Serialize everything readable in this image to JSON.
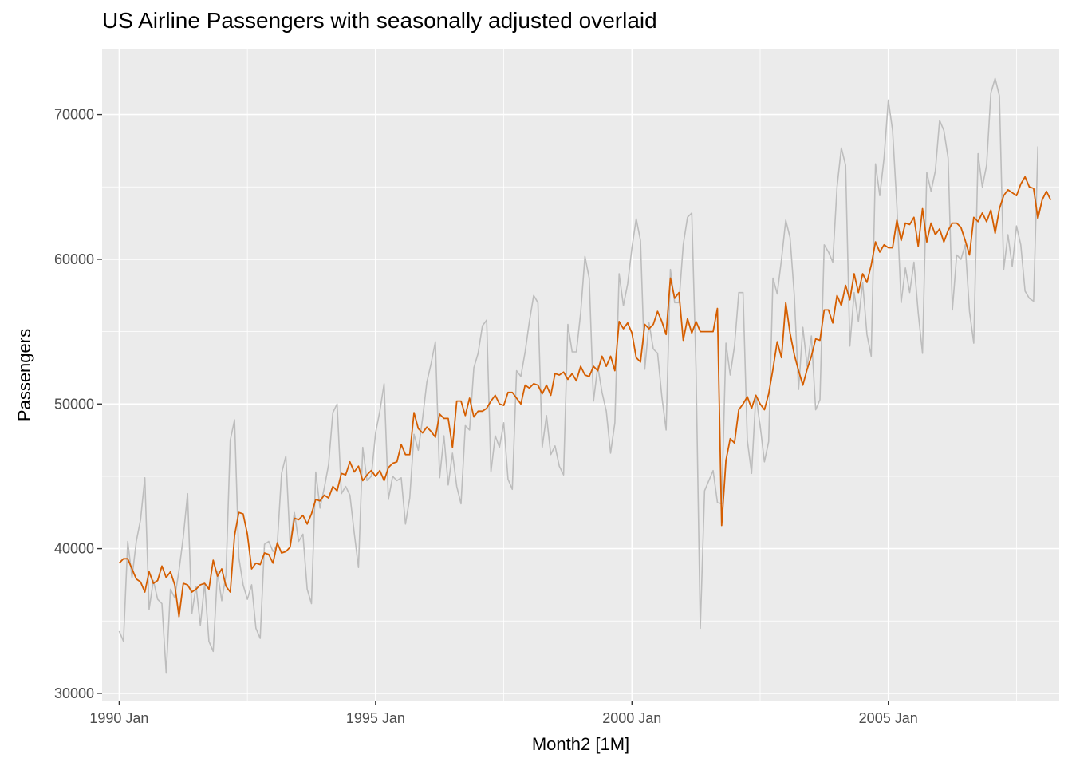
{
  "chart_data": {
    "type": "line",
    "title": "US Airline Passengers with seasonally adjusted overlaid",
    "xlabel": "Month2 [1M]",
    "ylabel": "Passengers",
    "x_range": [
      "1989-09",
      "2008-05"
    ],
    "ylim": [
      29500,
      74500
    ],
    "x_ticks": [
      {
        "date": "1990-01",
        "label": "1990 Jan"
      },
      {
        "date": "1995-01",
        "label": "1995 Jan"
      },
      {
        "date": "2000-01",
        "label": "2000 Jan"
      },
      {
        "date": "2005-01",
        "label": "2005 Jan"
      }
    ],
    "y_ticks": [
      30000,
      40000,
      50000,
      60000,
      70000
    ],
    "grid": true,
    "legend": "none",
    "background": "#ebebeb",
    "series": [
      {
        "color": "#bdbdbd",
        "start": "1990-01",
        "values": [
          34300,
          33600,
          40500,
          38000,
          40500,
          42000,
          44900,
          35800,
          37800,
          36500,
          36200,
          31400,
          37200,
          36600,
          38500,
          40800,
          43800,
          35500,
          37400,
          34700,
          37600,
          33600,
          32900,
          38400,
          36400,
          38200,
          47500,
          48900,
          39400,
          37500,
          36500,
          37500,
          34500,
          33800,
          40300,
          40500,
          39800,
          40300,
          45200,
          46400,
          40300,
          42500,
          40500,
          41000,
          37200,
          36200,
          45300,
          42800,
          44200,
          45800,
          49400,
          50000,
          43800,
          44300,
          43700,
          41100,
          38700,
          47000,
          44700,
          45000,
          48000,
          49500,
          51400,
          43400,
          45000,
          44700,
          44900,
          41700,
          43500,
          47900,
          46800,
          49000,
          51500,
          52800,
          54300,
          44900,
          47800,
          44400,
          46600,
          44300,
          43100,
          48500,
          48200,
          52500,
          53500,
          55400,
          55800,
          45300,
          47800,
          47000,
          48700,
          44800,
          44100,
          52300,
          51900,
          53600,
          55700,
          57500,
          57000,
          47000,
          49200,
          46500,
          47100,
          45700,
          45100,
          55500,
          53600,
          53600,
          56300,
          60200,
          58700,
          50200,
          52600,
          50800,
          49500,
          46600,
          48700,
          59000,
          56800,
          58300,
          60800,
          62800,
          61300,
          52400,
          55600,
          53800,
          53500,
          50500,
          48200,
          59300,
          57000,
          57000,
          61000,
          62900,
          63200,
          52400,
          34500,
          44000,
          44700,
          45400,
          43200,
          43100,
          54200,
          52000,
          54000,
          57700,
          57700,
          47500,
          45200,
          50600,
          48500,
          46000,
          47400,
          58700,
          57600,
          60000,
          62700,
          61500,
          57500,
          51000,
          55300,
          52600,
          54700,
          49600,
          50300,
          61000,
          60500,
          59800,
          65000,
          67700,
          66500,
          54000,
          57700,
          55700,
          58400,
          54800,
          53300,
          66600,
          64400,
          67000,
          71000,
          68900,
          63700,
          57000,
          59400,
          57700,
          59800,
          56300,
          53500,
          66000,
          64700,
          66100,
          69600,
          68900,
          67000,
          56500,
          60300,
          60000,
          61000,
          56400,
          54200,
          67300,
          65000,
          66500,
          71500,
          72500,
          71300,
          59300,
          61700,
          59500,
          62300,
          61000,
          57800,
          57300,
          57100,
          67800
        ]
      },
      {
        "color": "#d55e00",
        "start": "1990-01",
        "values": [
          39000,
          39300,
          39300,
          38600,
          37900,
          37700,
          37000,
          38400,
          37600,
          37800,
          38800,
          38000,
          38400,
          37500,
          35300,
          37600,
          37500,
          37000,
          37200,
          37500,
          37600,
          37200,
          39200,
          38100,
          38600,
          37400,
          37000,
          40900,
          42500,
          42400,
          41000,
          38600,
          39000,
          38900,
          39700,
          39600,
          39000,
          40400,
          39700,
          39800,
          40100,
          42100,
          42000,
          42300,
          41700,
          42400,
          43400,
          43300,
          43700,
          43500,
          44300,
          44000,
          45200,
          45100,
          46000,
          45300,
          45700,
          44700,
          45100,
          45400,
          45000,
          45400,
          44700,
          45600,
          45900,
          46000,
          47200,
          46500,
          46500,
          49400,
          48300,
          48000,
          48400,
          48100,
          47700,
          49300,
          49000,
          49000,
          47000,
          50200,
          50200,
          49200,
          50400,
          49100,
          49500,
          49500,
          49700,
          50200,
          50600,
          50000,
          49900,
          50800,
          50800,
          50400,
          50000,
          51300,
          51100,
          51400,
          51300,
          50700,
          51300,
          50600,
          52100,
          52000,
          52200,
          51700,
          52100,
          51600,
          52600,
          52000,
          51900,
          52600,
          52300,
          53300,
          52600,
          53300,
          52300,
          55700,
          55200,
          55600,
          54900,
          53200,
          52900,
          55500,
          55200,
          55500,
          56400,
          55700,
          54800,
          58700,
          57300,
          57700,
          54400,
          55900,
          54900,
          55700,
          55000,
          55000,
          55000,
          55000,
          56600,
          41600,
          46100,
          47600,
          47300,
          49600,
          50000,
          50500,
          49700,
          50600,
          50000,
          49600,
          50700,
          52400,
          54300,
          53200,
          57000,
          54900,
          53400,
          52300,
          51300,
          52400,
          53300,
          54500,
          54400,
          56500,
          56500,
          55600,
          57500,
          56800,
          58200,
          57200,
          59000,
          57700,
          59000,
          58400,
          59600,
          61200,
          60500,
          61000,
          60800,
          60800,
          62700,
          61300,
          62500,
          62400,
          62900,
          60900,
          63500,
          61200,
          62500,
          61700,
          62100,
          61200,
          62000,
          62500,
          62500,
          62200,
          61300,
          60300,
          62900,
          62600,
          63200,
          62600,
          63400,
          61800,
          63500,
          64400,
          64800,
          64600,
          64400,
          65200,
          65700,
          65000,
          64900,
          62800,
          64100,
          64700,
          64100
        ]
      }
    ]
  }
}
